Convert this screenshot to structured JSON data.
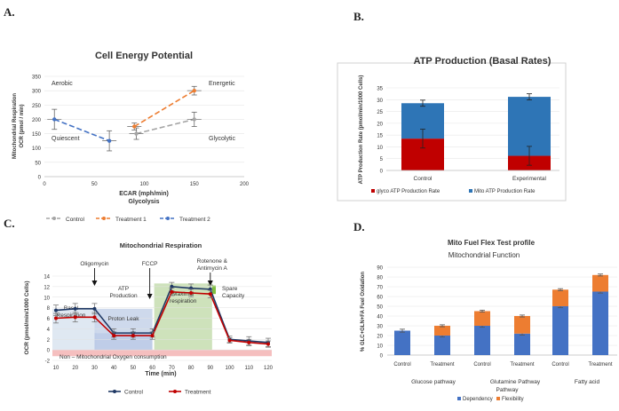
{
  "panels": {
    "a": "A.",
    "b": "B.",
    "c": "C.",
    "d": "D."
  },
  "chart_data": [
    {
      "id": "cell-energy",
      "type": "scatter",
      "title": "Cell Energy Potential",
      "xlabel": "ECAR (mph/min)",
      "xlabel2": "Glycolysis",
      "ylabel": "Mitochondrial Respiration",
      "ylabel2": "OCR (pmol / min)",
      "xlim": [
        0,
        200
      ],
      "ylim": [
        0,
        350
      ],
      "xticks": [
        0,
        50,
        100,
        150,
        200
      ],
      "yticks": [
        0,
        50,
        100,
        150,
        200,
        250,
        300,
        350
      ],
      "quadrants": [
        "Aerobic",
        "Energetic",
        "Quiescent",
        "Glycolytic"
      ],
      "series": [
        {
          "name": "Control",
          "color": "#a5a5a5",
          "points": [
            [
              92,
              150
            ],
            [
              150,
              200
            ]
          ],
          "err": [
            20,
            25
          ]
        },
        {
          "name": "Treatment 1",
          "color": "#ed7d31",
          "points": [
            [
              90,
              175
            ],
            [
              150,
              300
            ]
          ],
          "err": [
            12,
            15
          ]
        },
        {
          "name": "Treatment 2",
          "color": "#4472c4",
          "points": [
            [
              10,
              200
            ],
            [
              65,
              125
            ]
          ],
          "err": [
            35,
            35
          ]
        }
      ]
    },
    {
      "id": "atp-production",
      "type": "bar",
      "title": "ATP Production (Basal Rates)",
      "ylabel": "ATP Production Rate (pmol/min/1000 Cells)",
      "ylim": [
        0,
        35
      ],
      "yticks": [
        0,
        5,
        10,
        15,
        20,
        25,
        30,
        35
      ],
      "categories": [
        "Control",
        "Experimental"
      ],
      "series": [
        {
          "name": "glyco ATP Production Rate",
          "color": "#c00000",
          "values": [
            13.5,
            6.2
          ],
          "err": [
            4,
            4
          ]
        },
        {
          "name": "Mito ATP Production Rate",
          "color": "#2e75b6",
          "values": [
            15.0,
            25.0
          ],
          "err": [
            1.3,
            1.3
          ]
        }
      ]
    },
    {
      "id": "mito-respiration",
      "type": "line",
      "title": "Mitochondrial Respiration",
      "xlabel": "Time (min)",
      "ylabel": "OCR (pmol/min/1000 Cells)",
      "xlim": [
        10,
        120
      ],
      "ylim": [
        -2,
        14
      ],
      "xticks": [
        10,
        20,
        30,
        40,
        50,
        60,
        70,
        80,
        90,
        100,
        110,
        120
      ],
      "yticks": [
        -2,
        0,
        2,
        4,
        6,
        8,
        10,
        12,
        14
      ],
      "injections": [
        {
          "label": "Oligomycin",
          "x": 30
        },
        {
          "label": "FCCP",
          "x": 60
        },
        {
          "label": "Rotenone &",
          "label2": "Antimycin A",
          "x": 90
        }
      ],
      "regions": [
        "Basal Respiration",
        "ATP Production",
        "Proton Leak",
        "Maximal respiration",
        "Spare Capacity",
        "Non – Mitochondrial Oxygen consumption"
      ],
      "series": [
        {
          "name": "Control",
          "color": "#1f3864",
          "x": [
            10,
            20,
            30,
            40,
            50,
            60,
            70,
            80,
            90,
            100,
            110,
            120
          ],
          "values": [
            7.5,
            7.8,
            7.8,
            3.2,
            3.2,
            3.2,
            12.0,
            11.7,
            11.5,
            2.0,
            1.7,
            1.4
          ],
          "err": [
            1.0,
            1.0,
            1.0,
            0.8,
            0.8,
            0.8,
            0.8,
            0.8,
            0.8,
            0.6,
            0.8,
            0.8
          ]
        },
        {
          "name": "Treatment",
          "color": "#c00000",
          "x": [
            10,
            20,
            30,
            40,
            50,
            60,
            70,
            80,
            90,
            100,
            110,
            120
          ],
          "values": [
            6.0,
            6.2,
            6.2,
            2.7,
            2.7,
            2.7,
            11.0,
            10.8,
            10.6,
            1.8,
            1.4,
            1.1
          ],
          "err": [
            0.9,
            0.9,
            0.9,
            0.7,
            0.7,
            0.7,
            0.7,
            0.7,
            0.7,
            0.5,
            0.6,
            0.6
          ]
        }
      ]
    },
    {
      "id": "fuel-flex",
      "type": "bar",
      "title": "Mito Fuel Flex Test profile",
      "subtitle": "Mitochondrial Function",
      "ylabel": "% GLC+GLN+FA Fuel Oxidation",
      "ylim": [
        0,
        90
      ],
      "yticks": [
        0,
        10,
        20,
        30,
        40,
        50,
        60,
        70,
        80,
        90
      ],
      "categories": [
        "Control",
        "Treatment",
        "Control",
        "Treatment",
        "Control",
        "Treatment"
      ],
      "groups": [
        "Glucose pathway",
        "Glutamine Pathway",
        "Pathway",
        "Fatty acid"
      ],
      "series": [
        {
          "name": "Dependency",
          "color": "#4472c4",
          "values": [
            25,
            20,
            30,
            22,
            50,
            65
          ],
          "err": [
            1.5,
            1.5,
            1.5,
            1.5,
            1.5,
            1.5
          ]
        },
        {
          "name": "Flexibility",
          "color": "#ed7d31",
          "values": [
            0,
            10,
            15,
            18,
            17,
            17
          ],
          "err": [
            0,
            1,
            1,
            1,
            1,
            1
          ]
        }
      ]
    }
  ]
}
